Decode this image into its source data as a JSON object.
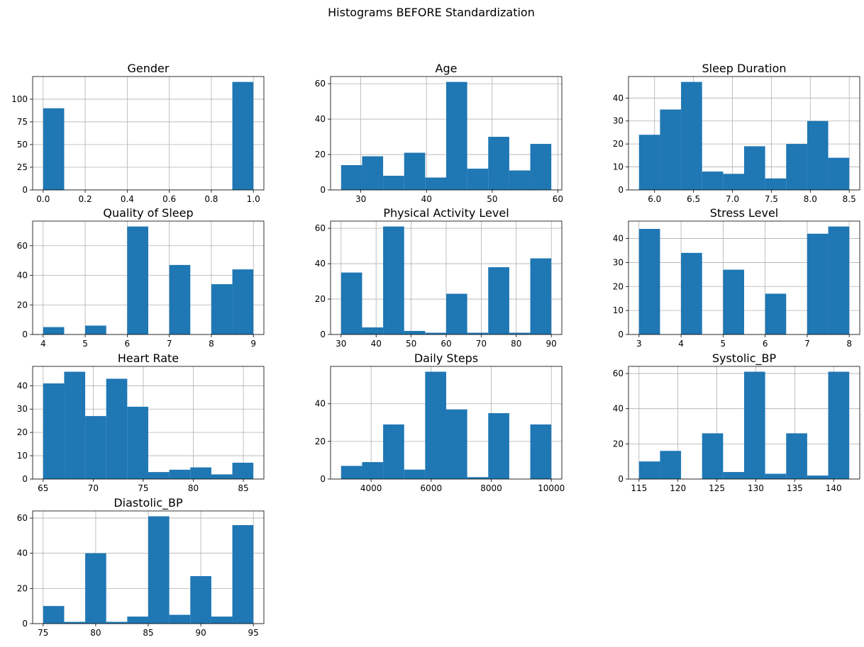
{
  "figure": {
    "title": "Histograms BEFORE Standardization"
  },
  "colors": {
    "bar": "#1f77b4",
    "grid": "#b0b0b0",
    "axis": "#000000",
    "background": "#ffffff"
  },
  "chart_data": [
    {
      "type": "bar",
      "title": "Gender",
      "xlabel": "",
      "ylabel": "",
      "xlim": [
        -0.05,
        1.05
      ],
      "ylim": [
        0,
        124.95
      ],
      "xticks": [
        0.0,
        0.2,
        0.4,
        0.6,
        0.8,
        1.0
      ],
      "xtick_labels": [
        "0.0",
        "0.2",
        "0.4",
        "0.6",
        "0.8",
        "1.0"
      ],
      "yticks": [
        0,
        25,
        50,
        75,
        100
      ],
      "ytick_labels": [
        "0",
        "25",
        "50",
        "75",
        "100"
      ],
      "bin_edges": [
        0.0,
        0.1,
        0.2,
        0.3,
        0.4,
        0.5,
        0.6,
        0.7,
        0.8,
        0.9,
        1.0
      ],
      "values": [
        90,
        0,
        0,
        0,
        0,
        0,
        0,
        0,
        0,
        119
      ],
      "grid": true
    },
    {
      "type": "bar",
      "title": "Age",
      "xlabel": "",
      "ylabel": "",
      "xlim": [
        25.4,
        60.6
      ],
      "ylim": [
        0,
        64.05
      ],
      "xticks": [
        30,
        40,
        50,
        60
      ],
      "xtick_labels": [
        "30",
        "40",
        "50",
        "60"
      ],
      "yticks": [
        0,
        20,
        40,
        60
      ],
      "ytick_labels": [
        "0",
        "20",
        "40",
        "60"
      ],
      "bin_edges": [
        27.0,
        30.2,
        33.4,
        36.6,
        39.8,
        43.0,
        46.2,
        49.4,
        52.6,
        55.8,
        59.0
      ],
      "values": [
        14,
        19,
        8,
        21,
        7,
        61,
        12,
        30,
        11,
        26
      ],
      "grid": true
    },
    {
      "type": "bar",
      "title": "Sleep Duration",
      "xlabel": "",
      "ylabel": "",
      "xlim": [
        5.665,
        8.635
      ],
      "ylim": [
        0,
        49.35
      ],
      "xticks": [
        6.0,
        6.5,
        7.0,
        7.5,
        8.0,
        8.5
      ],
      "xtick_labels": [
        "6.0",
        "6.5",
        "7.0",
        "7.5",
        "8.0",
        "8.5"
      ],
      "yticks": [
        0,
        10,
        20,
        30,
        40
      ],
      "ytick_labels": [
        "0",
        "10",
        "20",
        "30",
        "40"
      ],
      "bin_edges": [
        5.8,
        6.07,
        6.34,
        6.61,
        6.88,
        7.15,
        7.42,
        7.69,
        7.96,
        8.23,
        8.5
      ],
      "values": [
        24,
        35,
        47,
        8,
        7,
        19,
        5,
        20,
        30,
        14
      ],
      "grid": true
    },
    {
      "type": "bar",
      "title": "Quality of Sleep",
      "xlabel": "",
      "ylabel": "",
      "xlim": [
        3.75,
        9.25
      ],
      "ylim": [
        0,
        76.65
      ],
      "xticks": [
        4,
        5,
        6,
        7,
        8,
        9
      ],
      "xtick_labels": [
        "4",
        "5",
        "6",
        "7",
        "8",
        "9"
      ],
      "yticks": [
        0,
        20,
        40,
        60
      ],
      "ytick_labels": [
        "0",
        "20",
        "40",
        "60"
      ],
      "bin_edges": [
        4.0,
        4.5,
        5.0,
        5.5,
        6.0,
        6.5,
        7.0,
        7.5,
        8.0,
        8.5,
        9.0
      ],
      "values": [
        5,
        0,
        6,
        0,
        73,
        0,
        47,
        0,
        34,
        44
      ],
      "grid": true
    },
    {
      "type": "bar",
      "title": "Physical Activity Level",
      "xlabel": "",
      "ylabel": "",
      "xlim": [
        27.0,
        93.0
      ],
      "ylim": [
        0,
        64.05
      ],
      "xticks": [
        30,
        40,
        50,
        60,
        70,
        80,
        90
      ],
      "xtick_labels": [
        "30",
        "40",
        "50",
        "60",
        "70",
        "80",
        "90"
      ],
      "yticks": [
        0,
        20,
        40,
        60
      ],
      "ytick_labels": [
        "0",
        "20",
        "40",
        "60"
      ],
      "bin_edges": [
        30,
        36,
        42,
        48,
        54,
        60,
        66,
        72,
        78,
        84,
        90
      ],
      "values": [
        35,
        4,
        61,
        2,
        1,
        23,
        1,
        38,
        1,
        43
      ],
      "grid": true
    },
    {
      "type": "bar",
      "title": "Stress Level",
      "xlabel": "",
      "ylabel": "",
      "xlim": [
        2.75,
        8.25
      ],
      "ylim": [
        0,
        47.25
      ],
      "xticks": [
        3,
        4,
        5,
        6,
        7,
        8
      ],
      "xtick_labels": [
        "3",
        "4",
        "5",
        "6",
        "7",
        "8"
      ],
      "yticks": [
        0,
        10,
        20,
        30,
        40
      ],
      "ytick_labels": [
        "0",
        "10",
        "20",
        "30",
        "40"
      ],
      "bin_edges": [
        3.0,
        3.5,
        4.0,
        4.5,
        5.0,
        5.5,
        6.0,
        6.5,
        7.0,
        7.5,
        8.0
      ],
      "values": [
        44,
        0,
        34,
        0,
        27,
        0,
        17,
        0,
        42,
        45
      ],
      "grid": true
    },
    {
      "type": "bar",
      "title": "Heart Rate",
      "xlabel": "",
      "ylabel": "",
      "xlim": [
        63.95,
        87.05
      ],
      "ylim": [
        0,
        48.3
      ],
      "xticks": [
        65,
        70,
        75,
        80,
        85
      ],
      "xtick_labels": [
        "65",
        "70",
        "75",
        "80",
        "85"
      ],
      "yticks": [
        0,
        10,
        20,
        30,
        40
      ],
      "ytick_labels": [
        "0",
        "10",
        "20",
        "30",
        "40"
      ],
      "bin_edges": [
        65.0,
        67.1,
        69.2,
        71.3,
        73.4,
        75.5,
        77.6,
        79.7,
        81.8,
        83.9,
        86.0
      ],
      "values": [
        41,
        46,
        27,
        43,
        31,
        3,
        4,
        5,
        2,
        7
      ],
      "grid": true
    },
    {
      "type": "bar",
      "title": "Daily Steps",
      "xlabel": "",
      "ylabel": "",
      "xlim": [
        2650,
        10350
      ],
      "ylim": [
        0,
        59.85
      ],
      "xticks": [
        4000,
        6000,
        8000,
        10000
      ],
      "xtick_labels": [
        "4000",
        "6000",
        "8000",
        "10000"
      ],
      "yticks": [
        0,
        20,
        40
      ],
      "ytick_labels": [
        "0",
        "20",
        "40"
      ],
      "bin_edges": [
        3000,
        3700,
        4400,
        5100,
        5800,
        6500,
        7200,
        7900,
        8600,
        9300,
        10000
      ],
      "values": [
        7,
        9,
        29,
        5,
        57,
        37,
        1,
        35,
        0,
        29
      ],
      "grid": true
    },
    {
      "type": "bar",
      "title": "Systolic_BP",
      "xlabel": "",
      "ylabel": "",
      "xlim": [
        113.65,
        143.35
      ],
      "ylim": [
        0,
        64.05
      ],
      "xticks": [
        115,
        120,
        125,
        130,
        135,
        140
      ],
      "xtick_labels": [
        "115",
        "120",
        "125",
        "130",
        "135",
        "140"
      ],
      "yticks": [
        0,
        20,
        40,
        60
      ],
      "ytick_labels": [
        "0",
        "20",
        "40",
        "60"
      ],
      "bin_edges": [
        115.0,
        117.7,
        120.4,
        123.1,
        125.8,
        128.5,
        131.2,
        133.9,
        136.6,
        139.3,
        142.0
      ],
      "values": [
        10,
        16,
        0,
        26,
        4,
        61,
        3,
        26,
        2,
        61
      ],
      "grid": true
    },
    {
      "type": "bar",
      "title": "Diastolic_BP",
      "xlabel": "",
      "ylabel": "",
      "xlim": [
        74.0,
        96.0
      ],
      "ylim": [
        0,
        64.05
      ],
      "xticks": [
        75,
        80,
        85,
        90,
        95
      ],
      "xtick_labels": [
        "75",
        "80",
        "85",
        "90",
        "95"
      ],
      "yticks": [
        0,
        20,
        40,
        60
      ],
      "ytick_labels": [
        "0",
        "20",
        "40",
        "60"
      ],
      "bin_edges": [
        75,
        77,
        79,
        81,
        83,
        85,
        87,
        89,
        91,
        93,
        95
      ],
      "values": [
        10,
        1,
        40,
        1,
        4,
        61,
        5,
        27,
        4,
        56
      ],
      "grid": true
    }
  ]
}
